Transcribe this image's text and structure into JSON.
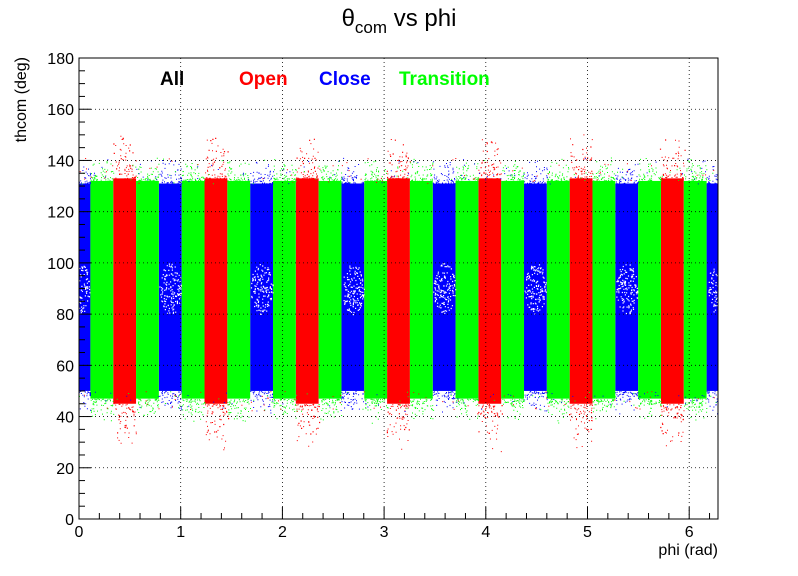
{
  "chart_data": {
    "type": "scatter",
    "title": {
      "main": "θ",
      "subscript": "com",
      "rest": " vs phi"
    },
    "xlabel": "phi (rad)",
    "ylabel": "thcom (deg)",
    "xlim": [
      0,
      6.2832
    ],
    "ylim": [
      0,
      180
    ],
    "x_ticks": [
      0,
      1,
      2,
      3,
      4,
      5,
      6
    ],
    "y_ticks": [
      0,
      20,
      40,
      60,
      80,
      100,
      120,
      140,
      160,
      180
    ],
    "grid": true,
    "legend_placement": "top-left, horizontal",
    "legend": [
      {
        "label": "All",
        "color": "#000000"
      },
      {
        "label": "Open",
        "color": "#ff0000"
      },
      {
        "label": "Close",
        "color": "#0000ff"
      },
      {
        "label": "Transition",
        "color": "#00ff00"
      }
    ],
    "band_period_rad": 0.8976,
    "band_pattern": [
      {
        "series": "Close",
        "start": -0.1122,
        "end": 0.1122,
        "ymin": 50,
        "ymax": 131
      },
      {
        "series": "Transition",
        "start": 0.1122,
        "end": 0.3366,
        "ymin": 47,
        "ymax": 132
      },
      {
        "series": "Open",
        "start": 0.3366,
        "end": 0.561,
        "ymin": 45,
        "ymax": 133
      },
      {
        "series": "Transition",
        "start": 0.561,
        "end": 0.7854,
        "ymin": 47,
        "ymax": 132
      }
    ],
    "series": [
      {
        "name": "Open",
        "color": "#ff0000",
        "x_ranges": [
          [
            0.3366,
            0.561
          ],
          [
            1.2342,
            1.4586
          ],
          [
            2.1318,
            2.3562
          ],
          [
            3.0294,
            3.2538
          ],
          [
            3.927,
            4.1514
          ],
          [
            4.8246,
            5.049
          ],
          [
            5.7222,
            5.9466
          ]
        ],
        "y_range": [
          45,
          133
        ]
      },
      {
        "name": "Close",
        "color": "#0000ff",
        "x_ranges": [
          [
            0.0,
            0.1122
          ],
          [
            0.7854,
            1.0098
          ],
          [
            1.683,
            1.9074
          ],
          [
            2.5806,
            2.805
          ],
          [
            3.4782,
            3.7026
          ],
          [
            4.3758,
            4.6002
          ],
          [
            5.2734,
            5.4978
          ],
          [
            6.171,
            6.2832
          ]
        ],
        "y_range": [
          50,
          131
        ]
      },
      {
        "name": "Transition",
        "color": "#00ff00",
        "x_ranges": [
          [
            0.1122,
            0.3366
          ],
          [
            0.561,
            0.7854
          ],
          [
            1.0098,
            1.2342
          ],
          [
            1.4586,
            1.683
          ],
          [
            1.9074,
            2.1318
          ],
          [
            2.3562,
            2.5806
          ],
          [
            2.805,
            3.0294
          ],
          [
            3.2538,
            3.4782
          ],
          [
            3.7026,
            3.927
          ],
          [
            4.1514,
            4.3758
          ],
          [
            4.6002,
            4.8246
          ],
          [
            5.049,
            5.2734
          ],
          [
            5.4978,
            5.7222
          ],
          [
            5.9466,
            6.171
          ]
        ],
        "y_range": [
          47,
          132
        ]
      }
    ],
    "holes": {
      "color": "#ffffff",
      "centers_x": [
        0.0,
        0.8976,
        1.7952,
        2.6928,
        3.5904,
        4.488,
        5.3856,
        6.2832
      ],
      "y_range": [
        80,
        100
      ]
    }
  }
}
